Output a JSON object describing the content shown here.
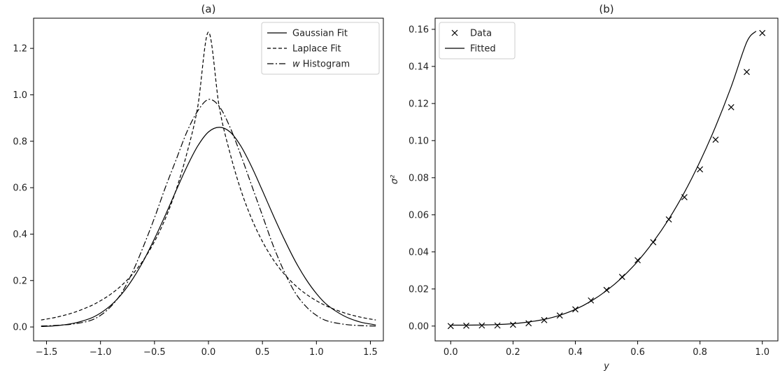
{
  "chart_data": [
    {
      "panel": "a",
      "type": "line",
      "title": "(a)",
      "xlabel": "",
      "ylabel": "",
      "xlim": [
        -1.62,
        1.62
      ],
      "ylim": [
        -0.06,
        1.33
      ],
      "xticks": [
        -1.5,
        -1.0,
        -0.5,
        0.0,
        0.5,
        1.0,
        1.5
      ],
      "xtick_labels": [
        "−1.5",
        "−1.0",
        "−0.5",
        "0.0",
        "0.5",
        "1.0",
        "1.5"
      ],
      "yticks": [
        0.0,
        0.2,
        0.4,
        0.6,
        0.8,
        1.0,
        1.2
      ],
      "ytick_labels": [
        "0.0",
        "0.2",
        "0.4",
        "0.6",
        "0.8",
        "1.0",
        "1.2"
      ],
      "grid": false,
      "legend": "top-right",
      "series": [
        {
          "name": "Gaussian Fit",
          "style": "solid",
          "x": [
            -1.55,
            -1.4,
            -1.25,
            -1.1,
            -1.0,
            -0.9,
            -0.8,
            -0.7,
            -0.6,
            -0.5,
            -0.4,
            -0.3,
            -0.2,
            -0.1,
            0.0,
            0.1,
            0.2,
            0.3,
            0.4,
            0.5,
            0.6,
            0.7,
            0.8,
            0.9,
            1.0,
            1.1,
            1.25,
            1.4,
            1.55
          ],
          "y": [
            0.002,
            0.006,
            0.016,
            0.036,
            0.06,
            0.095,
            0.144,
            0.208,
            0.287,
            0.38,
            0.481,
            0.587,
            0.69,
            0.779,
            0.84,
            0.86,
            0.84,
            0.779,
            0.69,
            0.587,
            0.481,
            0.38,
            0.287,
            0.208,
            0.144,
            0.095,
            0.049,
            0.022,
            0.009
          ]
        },
        {
          "name": "Laplace Fit",
          "style": "dashed",
          "x": [
            -1.55,
            -1.4,
            -1.25,
            -1.1,
            -1.0,
            -0.9,
            -0.8,
            -0.7,
            -0.6,
            -0.5,
            -0.4,
            -0.3,
            -0.2,
            -0.1,
            0.0,
            0.1,
            0.2,
            0.3,
            0.4,
            0.5,
            0.6,
            0.7,
            0.8,
            0.9,
            1.0,
            1.1,
            1.25,
            1.4,
            1.55
          ],
          "y": [
            0.03,
            0.043,
            0.062,
            0.089,
            0.113,
            0.143,
            0.181,
            0.229,
            0.29,
            0.368,
            0.466,
            0.59,
            0.748,
            0.947,
            1.27,
            0.947,
            0.748,
            0.59,
            0.466,
            0.368,
            0.29,
            0.229,
            0.181,
            0.143,
            0.113,
            0.089,
            0.062,
            0.043,
            0.03
          ]
        },
        {
          "name": "w Histogram",
          "style": "dashdot",
          "x": [
            -1.55,
            -1.4,
            -1.25,
            -1.1,
            -1.0,
            -0.9,
            -0.8,
            -0.7,
            -0.6,
            -0.5,
            -0.4,
            -0.3,
            -0.2,
            -0.1,
            0.0,
            0.1,
            0.2,
            0.3,
            0.4,
            0.5,
            0.6,
            0.7,
            0.8,
            0.9,
            1.0,
            1.1,
            1.25,
            1.4,
            1.55
          ],
          "y": [
            0.004,
            0.007,
            0.013,
            0.027,
            0.05,
            0.09,
            0.15,
            0.24,
            0.35,
            0.47,
            0.6,
            0.72,
            0.84,
            0.93,
            0.98,
            0.95,
            0.86,
            0.74,
            0.61,
            0.48,
            0.35,
            0.24,
            0.15,
            0.09,
            0.05,
            0.026,
            0.012,
            0.006,
            0.004
          ]
        }
      ]
    },
    {
      "panel": "b",
      "type": "scatter",
      "title": "(b)",
      "xlabel": "y",
      "ylabel": "σ²",
      "xlim": [
        -0.05,
        1.05
      ],
      "ylim": [
        -0.008,
        0.166
      ],
      "xticks": [
        0.0,
        0.2,
        0.4,
        0.6,
        0.8,
        1.0
      ],
      "xtick_labels": [
        "0.0",
        "0.2",
        "0.4",
        "0.6",
        "0.8",
        "1.0"
      ],
      "yticks": [
        0.0,
        0.02,
        0.04,
        0.06,
        0.08,
        0.1,
        0.12,
        0.14,
        0.16
      ],
      "ytick_labels": [
        "0.00",
        "0.02",
        "0.04",
        "0.06",
        "0.08",
        "0.10",
        "0.12",
        "0.14",
        "0.16"
      ],
      "grid": false,
      "legend": "top-left",
      "series": [
        {
          "name": "Data",
          "marker": "x",
          "x": [
            0.0,
            0.05,
            0.1,
            0.15,
            0.2,
            0.25,
            0.3,
            0.35,
            0.4,
            0.45,
            0.5,
            0.55,
            0.6,
            0.65,
            0.7,
            0.75,
            0.8,
            0.85,
            0.9,
            0.95,
            1.0
          ],
          "y": [
            0.0,
            0.0002,
            0.0003,
            0.0003,
            0.0007,
            0.0015,
            0.0032,
            0.0057,
            0.009,
            0.0138,
            0.0195,
            0.0265,
            0.0355,
            0.0452,
            0.0575,
            0.0695,
            0.0845,
            0.1005,
            0.118,
            0.137,
            0.158
          ]
        },
        {
          "name": "Fitted",
          "style": "solid",
          "x": [
            0.0,
            0.05,
            0.1,
            0.15,
            0.2,
            0.25,
            0.3,
            0.35,
            0.4,
            0.45,
            0.5,
            0.55,
            0.6,
            0.65,
            0.7,
            0.75,
            0.8,
            0.85,
            0.9,
            0.95,
            0.98
          ],
          "y": [
            0.0005,
            0.0005,
            0.0006,
            0.0008,
            0.0013,
            0.0022,
            0.0036,
            0.0058,
            0.009,
            0.0134,
            0.0191,
            0.0262,
            0.0349,
            0.0454,
            0.0577,
            0.0721,
            0.0887,
            0.1076,
            0.129,
            0.1531,
            0.159
          ]
        }
      ]
    }
  ]
}
